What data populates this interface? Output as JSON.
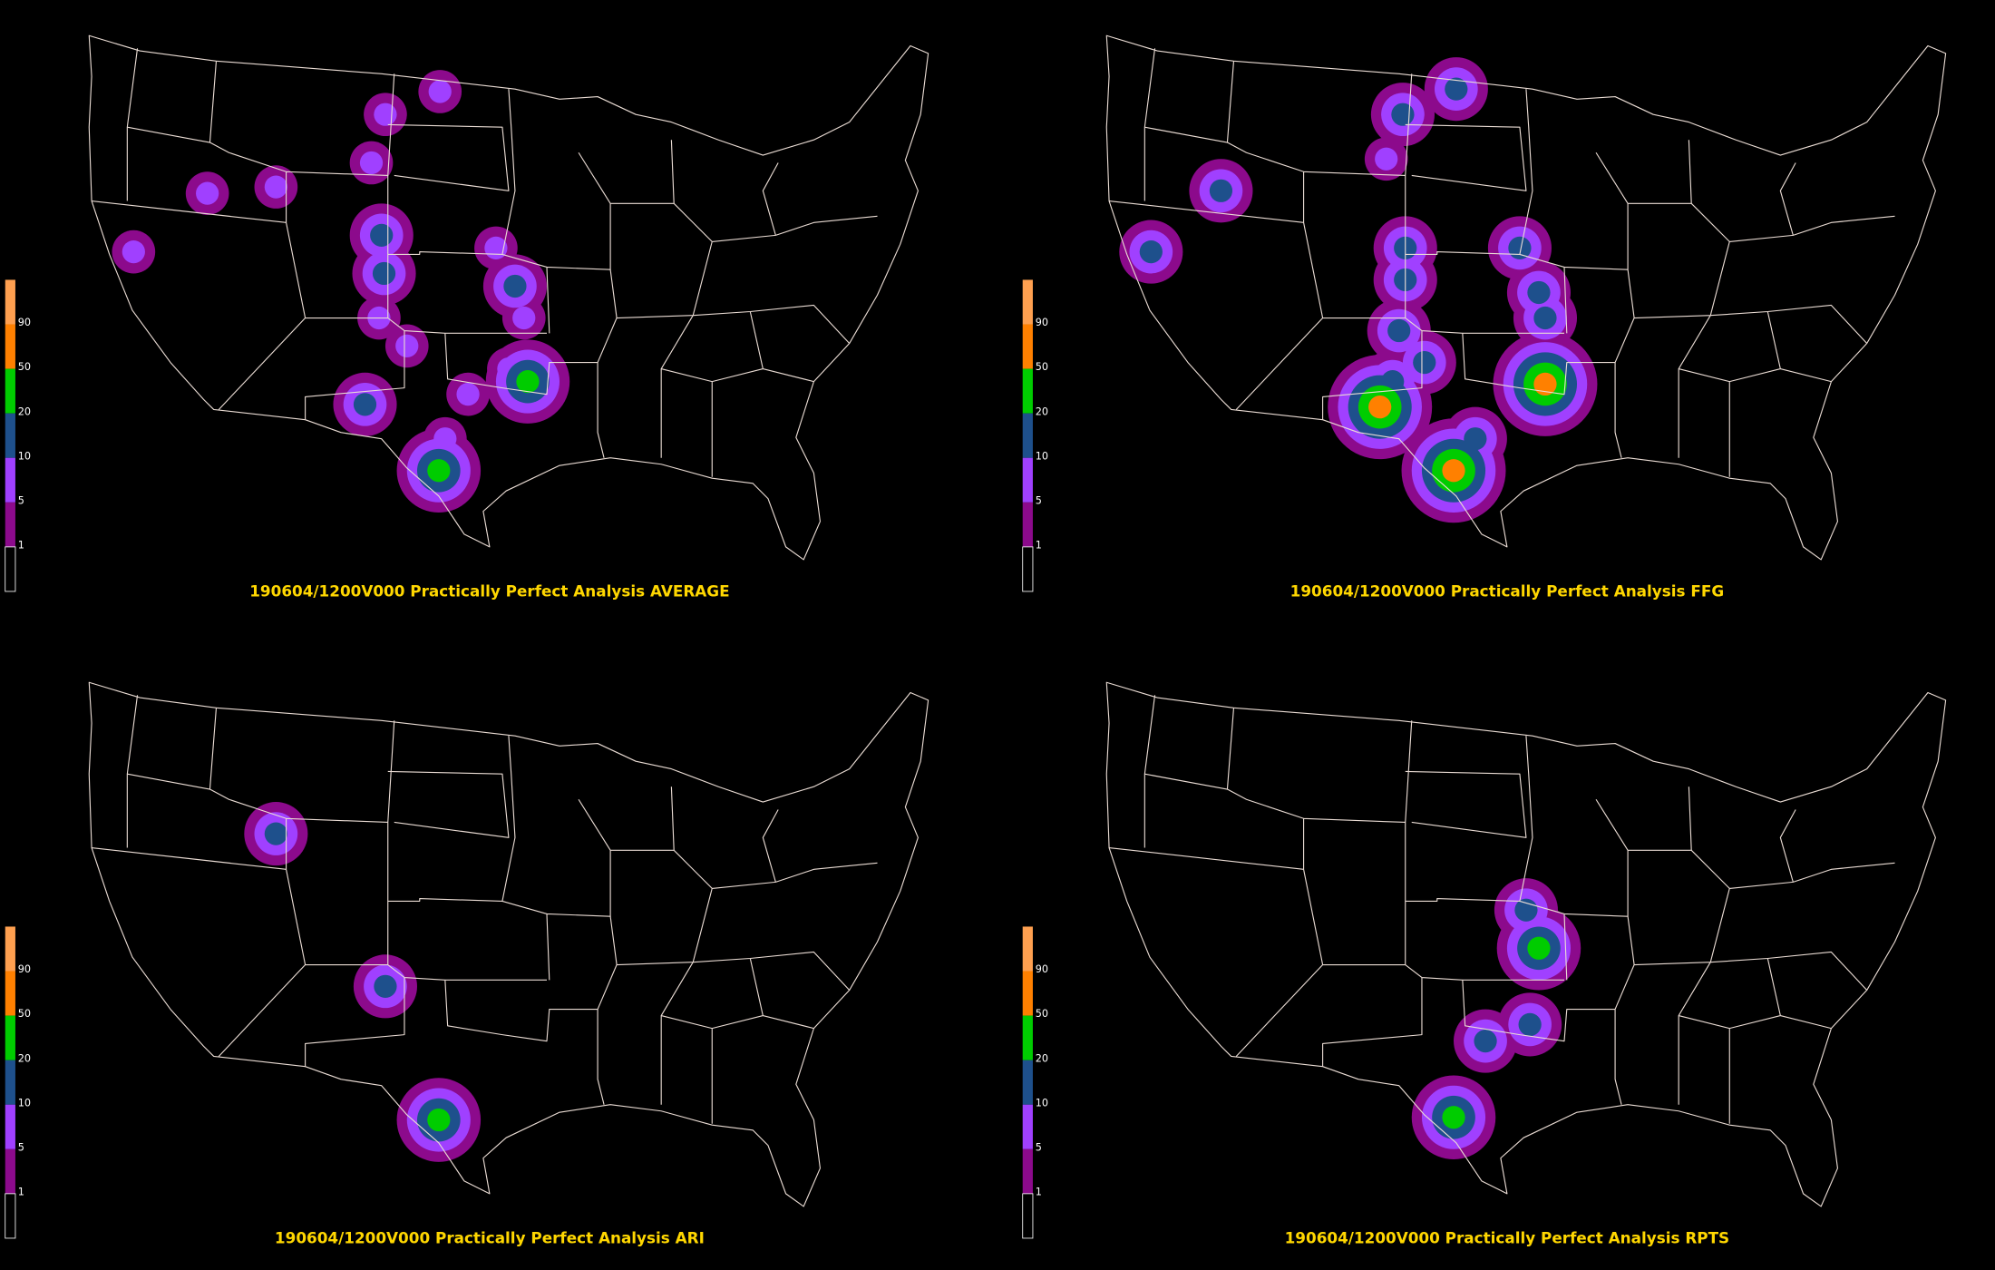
{
  "panels": [
    {
      "title": "190604/1200V000 Practically Perfect Analysis AVERAGE",
      "legend": [
        "90",
        "50",
        "20",
        "10",
        "5",
        "1"
      ]
    },
    {
      "title": "190604/1200V000 Practically Perfect Analysis FFG",
      "legend": [
        "90",
        "50",
        "20",
        "10",
        "5",
        "1"
      ]
    },
    {
      "title": "190604/1200V000 Practically Perfect Analysis ARI",
      "legend": [
        "90",
        "50",
        "20",
        "10",
        "5",
        "1"
      ]
    },
    {
      "title": "190604/1200V000 Practically Perfect Analysis RPTS",
      "legend": [
        "90",
        "50",
        "20",
        "10",
        "5",
        "1"
      ]
    }
  ],
  "legend_colors": [
    "#ffa050",
    "#ff8000",
    "#00cc00",
    "#1e508c",
    "#a040ff",
    "#8c0a8c",
    "#000000"
  ]
}
